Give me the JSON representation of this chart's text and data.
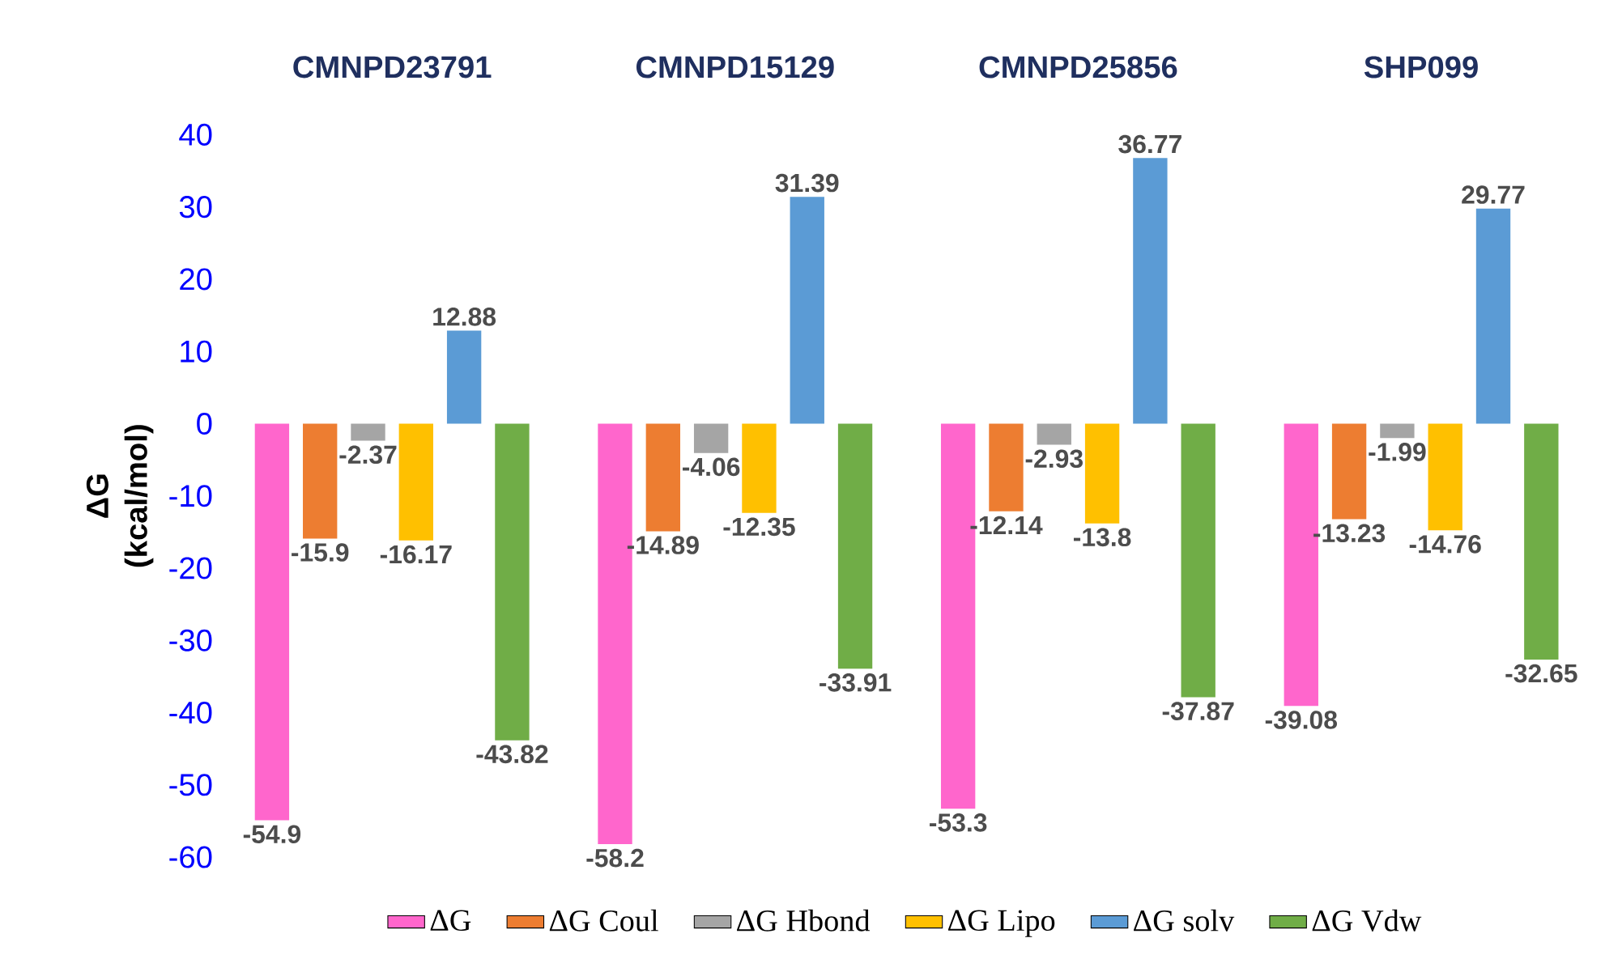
{
  "chart_data": {
    "type": "bar",
    "ylabel": "ΔG (kcal/mol)",
    "categories": [
      "CMNPD23791",
      "CMNPD15129",
      "CMNPD25856",
      "SHP099"
    ],
    "series": [
      {
        "name": "ΔG",
        "color": "#ff66cc",
        "values": [
          -54.9,
          -58.2,
          -53.3,
          -39.08
        ]
      },
      {
        "name": "ΔG Coul",
        "color": "#ed7d31",
        "values": [
          -15.9,
          -14.89,
          -12.14,
          -13.23
        ]
      },
      {
        "name": "ΔG Hbond",
        "color": "#a5a5a5",
        "values": [
          -2.37,
          -4.06,
          -2.93,
          -1.99
        ]
      },
      {
        "name": "ΔG Lipo",
        "color": "#ffc000",
        "values": [
          -16.17,
          -12.35,
          -13.8,
          -14.76
        ]
      },
      {
        "name": "ΔG solv",
        "color": "#5b9bd5",
        "values": [
          12.88,
          31.39,
          36.77,
          29.77
        ]
      },
      {
        "name": "ΔG Vdw",
        "color": "#70ad47",
        "values": [
          -43.82,
          -33.91,
          -37.87,
          -32.65
        ]
      }
    ],
    "ylim": [
      -60,
      40
    ],
    "yticks": [
      -60,
      -50,
      -40,
      -30,
      -20,
      -10,
      0,
      10,
      20,
      30,
      40
    ],
    "data_labels": true,
    "legend": "bottom",
    "grid": false
  }
}
